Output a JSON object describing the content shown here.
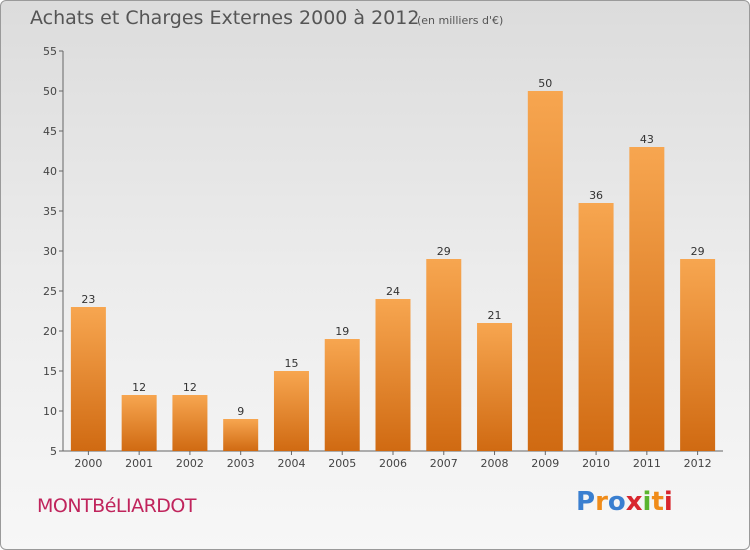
{
  "chart_title": "Achats et Charges Externes 2000 à 2012",
  "chart_unit": "(en milliers d'€)",
  "town": "MONTBéLIARDOT",
  "logo": {
    "letters": [
      "P",
      "r",
      "o",
      "x",
      "i",
      "t",
      "i"
    ],
    "colors": [
      "#3a7fd0",
      "#f08c1a",
      "#3a7fd0",
      "#d8262e",
      "#5ab52e",
      "#f08c1a",
      "#d8262e"
    ]
  },
  "colors": {
    "bar_light": "#f7a650",
    "bar_dark": "#d06a12",
    "title": "#555555",
    "town": "#c0245c"
  },
  "chart_data": {
    "type": "bar",
    "title": "Achats et Charges Externes 2000 à 2012",
    "subtitle": "(en milliers d'€)",
    "xlabel": "",
    "ylabel": "",
    "categories": [
      "2000",
      "2001",
      "2002",
      "2003",
      "2004",
      "2005",
      "2006",
      "2007",
      "2008",
      "2009",
      "2010",
      "2011",
      "2012"
    ],
    "values": [
      23,
      12,
      12,
      9,
      15,
      19,
      24,
      29,
      21,
      50,
      36,
      43,
      29
    ],
    "ylim": [
      5,
      55
    ],
    "yticks": [
      5,
      10,
      15,
      20,
      25,
      30,
      35,
      40,
      45,
      50,
      55
    ],
    "grid": false,
    "legend": "none"
  }
}
